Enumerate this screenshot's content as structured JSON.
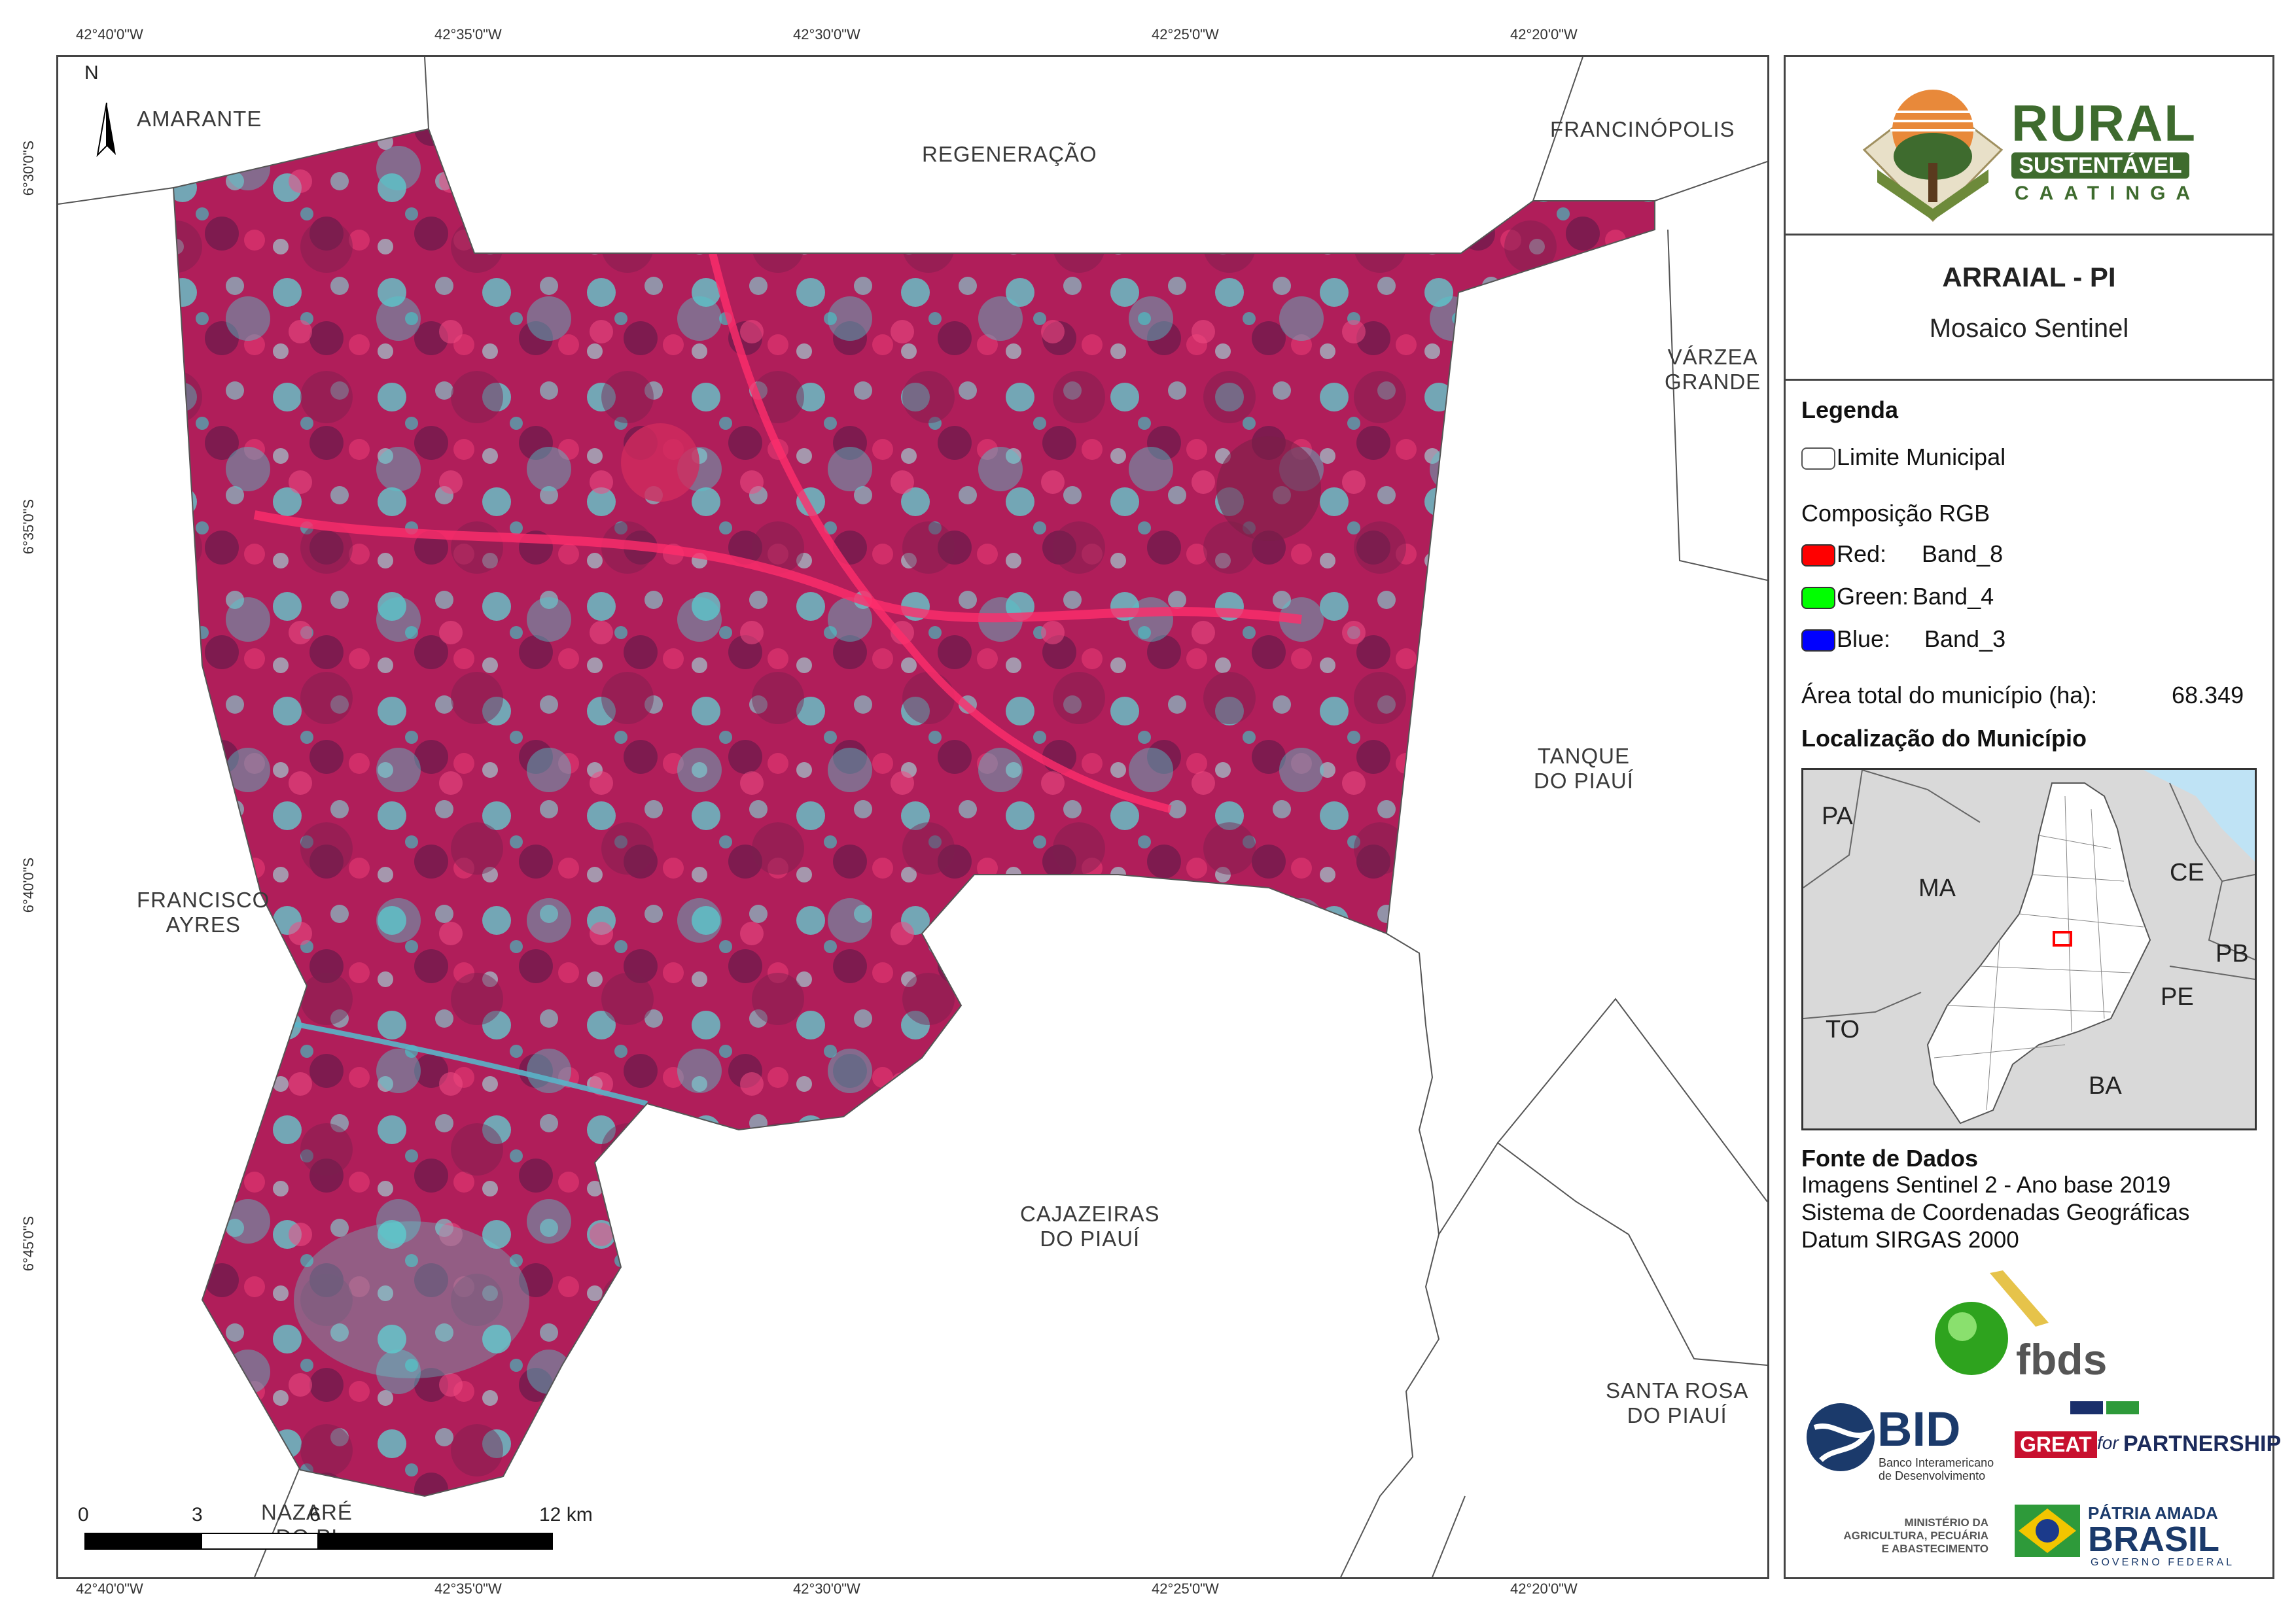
{
  "coordinates": {
    "longitude_ticks": [
      "42°40'0\"W",
      "42°35'0\"W",
      "42°30'0\"W",
      "42°25'0\"W",
      "42°20'0\"W"
    ],
    "latitude_ticks": [
      "6°30'0\"S",
      "6°35'0\"S",
      "6°40'0\"S",
      "6°45'0\"S"
    ]
  },
  "map": {
    "north_label": "N",
    "municipalities": {
      "amarante": "AMARANTE",
      "regeneracao": "REGENERAÇÃO",
      "francinopolis": "FRANCINÓPOLIS",
      "varzea_1": "VÁRZEA",
      "varzea_2": "GRANDE",
      "tanque_1": "TANQUE",
      "tanque_2": "DO PIAUÍ",
      "francisco_1": "FRANCISCO",
      "francisco_2": "AYRES",
      "cajazeiras_1": "CAJAZEIRAS",
      "cajazeiras_2": "DO PIAUÍ",
      "santarosa_1": "SANTA ROSA",
      "santarosa_2": "DO PIAUÍ",
      "nazare_1": "NAZARÉ",
      "nazare_2": "DO PI"
    },
    "scale_bar": {
      "labels": [
        "0",
        "3",
        "6",
        "12 km"
      ]
    }
  },
  "header": {
    "logo_line1": "RURAL",
    "logo_line2": "SUSTENTÁVEL",
    "logo_line3": "CAATINGA",
    "title": "ARRAIAL - PI",
    "subtitle": "Mosaico Sentinel"
  },
  "legend": {
    "heading": "Legenda",
    "boundary_label": "Limite Municipal",
    "rgb_heading": "Composição RGB",
    "bands": [
      {
        "channel": "Red:",
        "band": "Band_8",
        "color": "#ff0000"
      },
      {
        "channel": "Green:",
        "band": "Band_4",
        "color": "#00ff00"
      },
      {
        "channel": "Blue:",
        "band": "Band_3",
        "color": "#0000ff"
      }
    ],
    "area_label": "Área total do município (ha):",
    "area_value": "68.349",
    "location_heading": "Localização do Município"
  },
  "locator": {
    "states": [
      "PA",
      "MA",
      "CE",
      "PB",
      "PE",
      "TO",
      "BA"
    ]
  },
  "sources": {
    "heading": "Fonte de Dados",
    "lines": [
      "Imagens Sentinel 2 - Ano base 2019",
      "Sistema de Coordenadas Geográficas",
      "Datum SIRGAS 2000"
    ]
  },
  "sponsors": {
    "fbds": "fbds",
    "bid": "BID",
    "bid_caption_1": "Banco Interamericano",
    "bid_caption_2": "de Desenvolvimento",
    "great": "GREAT",
    "great_for": "for",
    "great_partnership": "PARTNERSHIP",
    "ministry_1": "MINISTÉRIO DA",
    "ministry_2": "AGRICULTURA, PECUÁRIA",
    "ministry_3": "E ABASTECIMENTO",
    "brasil_1": "PÁTRIA AMADA",
    "brasil_2": "BRASIL",
    "brasil_3": "GOVERNO FEDERAL"
  },
  "colors": {
    "vegetation": "#c2185b",
    "bare_soil": "#5fd3d3",
    "logo_green": "#3e6b2e",
    "bid_blue": "#1b3a6b",
    "great_red": "#c8102e",
    "locator_fill": "#d9d9d9",
    "ocean": "#bfe3f5"
  }
}
